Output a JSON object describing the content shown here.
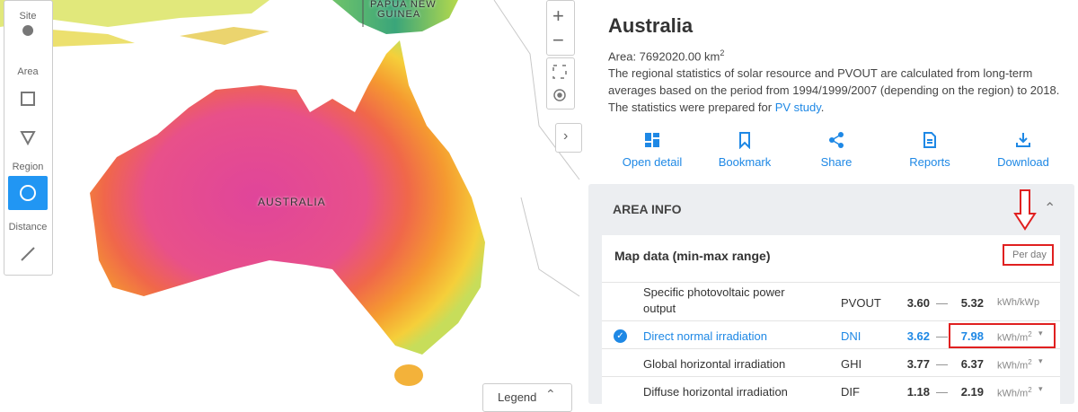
{
  "map": {
    "labels": [
      "PAPUA NEW",
      "GUINEA",
      "AUSTRALIA"
    ],
    "legend": "Legend"
  },
  "toolbar": {
    "sections": [
      "Site",
      "Area",
      "Region",
      "Distance"
    ]
  },
  "panel": {
    "title": "Australia",
    "area_label": "Area: 7692020.00 km",
    "area_sup": "2",
    "description": [
      "The regional statistics of solar resource and PVOUT are calculated from long-term",
      "averages based on the period from 1994/1999/2007 (depending on the region) to 2018.",
      "The statistics were prepared for"
    ],
    "link": "PV study",
    "link_end": ".",
    "actions": [
      "Open detail",
      "Bookmark",
      "Share",
      "Reports",
      "Download"
    ],
    "section": "AREA INFO",
    "map_data_title": "Map data (min-max range)",
    "period": "Per day",
    "rows": [
      {
        "name": [
          "Specific photovoltaic power",
          "output"
        ],
        "code": "PVOUT",
        "min": "3.60",
        "max": "5.32",
        "unit": "kWh/kWp"
      },
      {
        "name": [
          "Direct normal irradiation"
        ],
        "code": "DNI",
        "min": "3.62",
        "max": "7.98",
        "unit": "kWh/m",
        "unit_sup": "2",
        "selected": true
      },
      {
        "name": [
          "Global horizontal irradiation"
        ],
        "code": "GHI",
        "min": "3.77",
        "max": "6.37",
        "unit": "kWh/m",
        "unit_sup": "2"
      },
      {
        "name": [
          "Diffuse horizontal irradiation"
        ],
        "code": "DIF",
        "min": "1.18",
        "max": "2.19",
        "unit": "kWh/m",
        "unit_sup": "2"
      }
    ]
  }
}
